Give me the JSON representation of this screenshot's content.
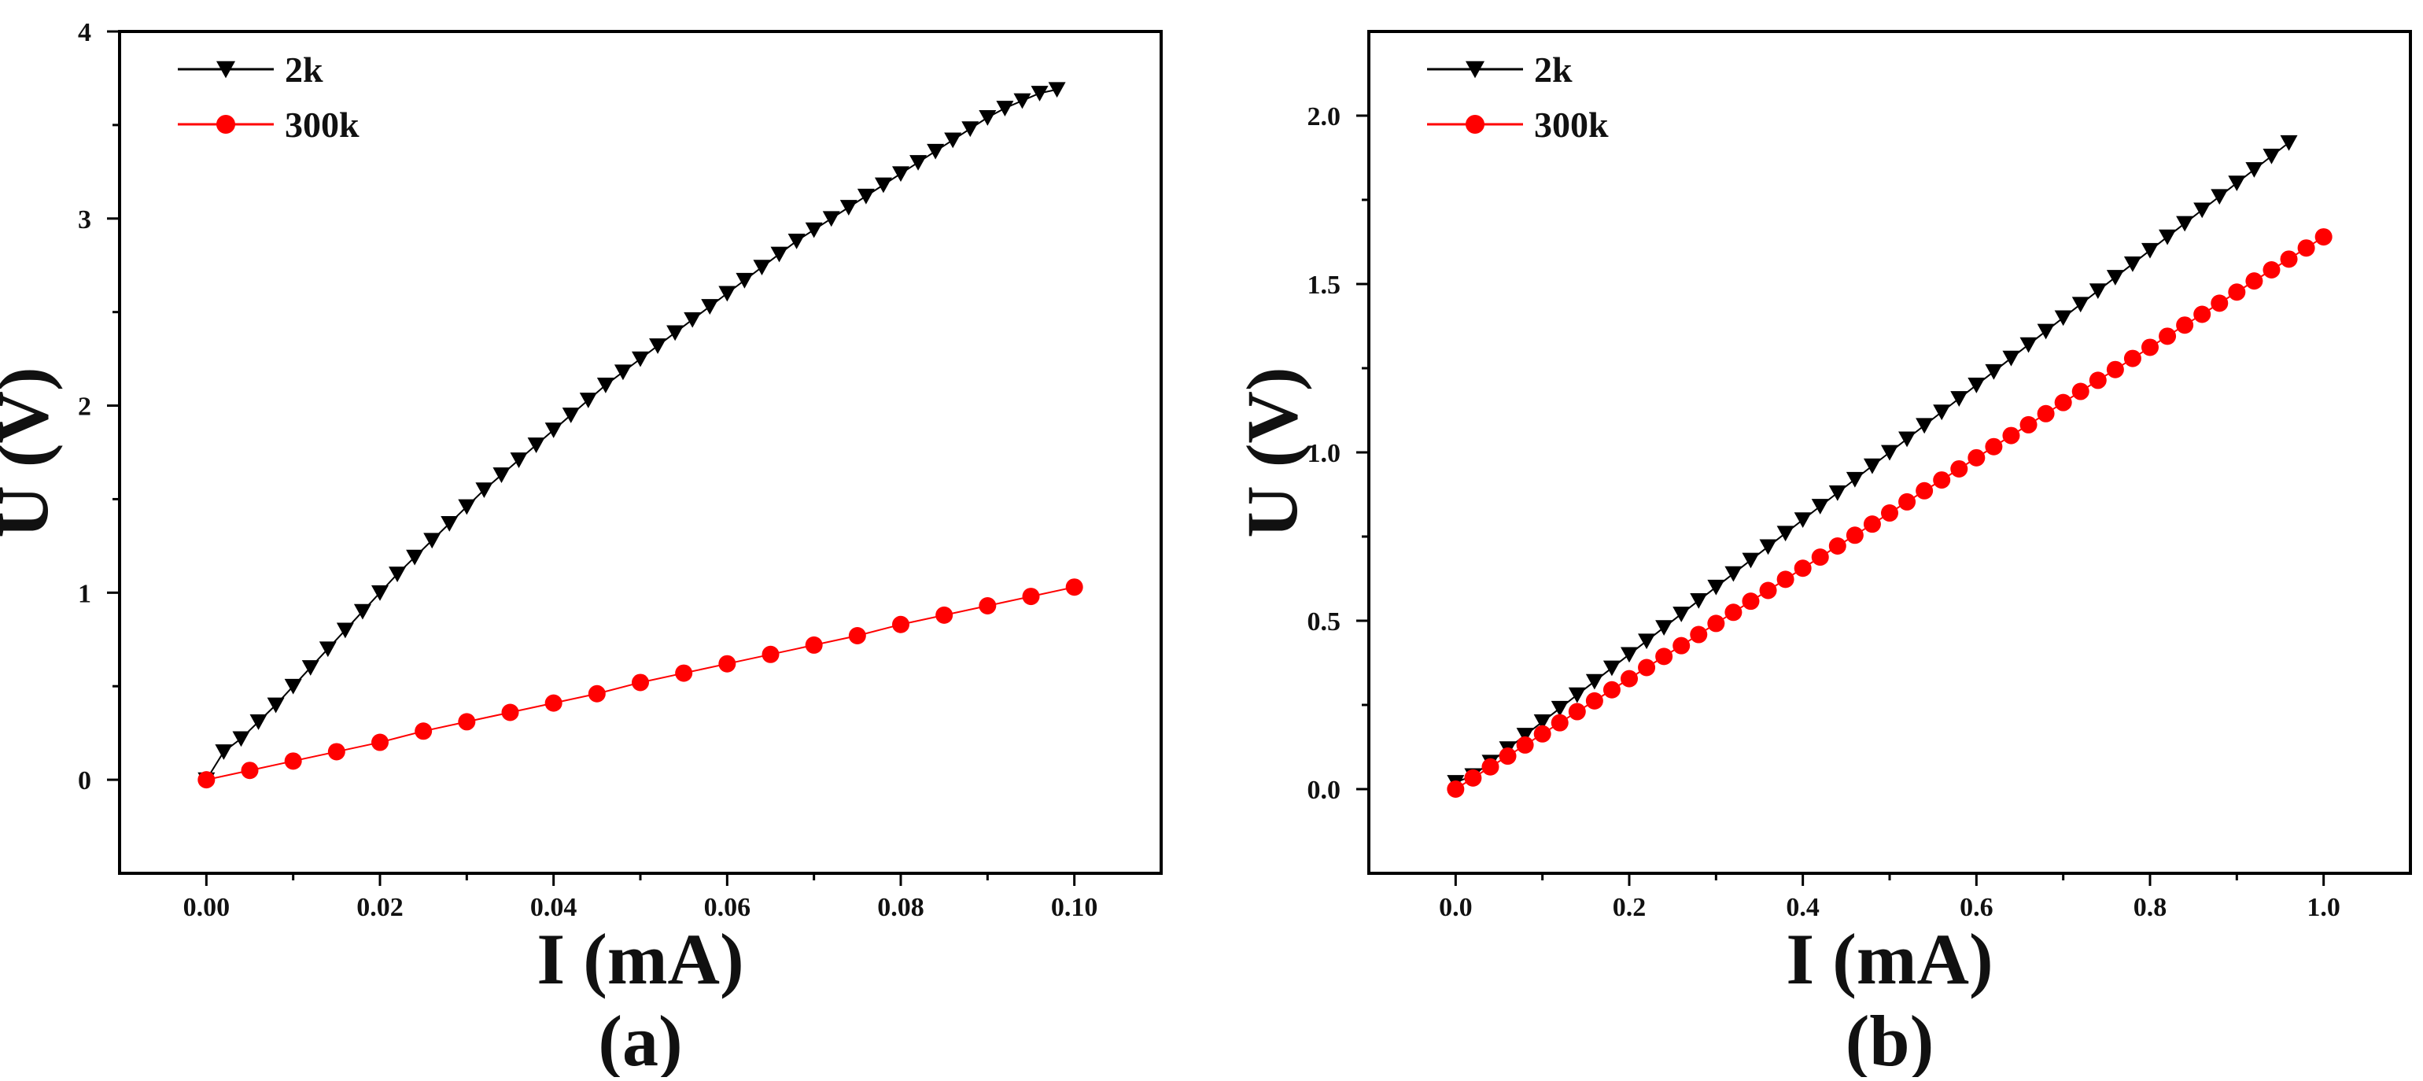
{
  "figure": {
    "panels": [
      "(a)",
      "(b)"
    ]
  },
  "chart_data": [
    {
      "type": "line",
      "title": "",
      "panel_label": "(a)",
      "xlabel": "I (mA)",
      "ylabel": "U (V)",
      "xlim": [
        -0.01,
        0.11
      ],
      "ylim": [
        -0.5,
        4.0
      ],
      "xticks": [
        "0.00",
        "0.02",
        "0.04",
        "0.06",
        "0.08",
        "0.10"
      ],
      "xtick_values": [
        0,
        0.02,
        0.04,
        0.06,
        0.08,
        0.1
      ],
      "yticks": [
        "0",
        "1",
        "2",
        "3",
        "4"
      ],
      "ytick_values": [
        0,
        1,
        2,
        3,
        4
      ],
      "grid": false,
      "legend_position": "top-left",
      "series": [
        {
          "name": "2k",
          "color": "#000000",
          "marker": "triangle-down",
          "x": [
            0,
            0.002,
            0.004,
            0.006,
            0.008,
            0.01,
            0.012,
            0.014,
            0.016,
            0.018,
            0.02,
            0.022,
            0.024,
            0.026,
            0.028,
            0.03,
            0.032,
            0.034,
            0.036,
            0.038,
            0.04,
            0.042,
            0.044,
            0.046,
            0.048,
            0.05,
            0.052,
            0.054,
            0.056,
            0.058,
            0.06,
            0.062,
            0.064,
            0.066,
            0.068,
            0.07,
            0.072,
            0.074,
            0.076,
            0.078,
            0.08,
            0.082,
            0.084,
            0.086,
            0.088,
            0.09,
            0.092,
            0.094,
            0.096,
            0.098
          ],
          "y": [
            0,
            0.15,
            0.22,
            0.31,
            0.4,
            0.5,
            0.6,
            0.7,
            0.8,
            0.9,
            1.0,
            1.1,
            1.19,
            1.28,
            1.37,
            1.46,
            1.55,
            1.63,
            1.71,
            1.79,
            1.87,
            1.95,
            2.03,
            2.11,
            2.18,
            2.25,
            2.32,
            2.39,
            2.46,
            2.53,
            2.6,
            2.67,
            2.74,
            2.81,
            2.88,
            2.94,
            3.0,
            3.06,
            3.12,
            3.18,
            3.24,
            3.3,
            3.36,
            3.42,
            3.48,
            3.54,
            3.59,
            3.63,
            3.67,
            3.69
          ]
        },
        {
          "name": "300k",
          "color": "#ff0000",
          "marker": "circle",
          "x": [
            0,
            0.005,
            0.01,
            0.015,
            0.02,
            0.025,
            0.03,
            0.035,
            0.04,
            0.045,
            0.05,
            0.055,
            0.06,
            0.065,
            0.07,
            0.075,
            0.08,
            0.085,
            0.09,
            0.095,
            0.1
          ],
          "y": [
            0,
            0.05,
            0.1,
            0.15,
            0.2,
            0.26,
            0.31,
            0.36,
            0.41,
            0.46,
            0.52,
            0.57,
            0.62,
            0.67,
            0.72,
            0.77,
            0.83,
            0.88,
            0.93,
            0.98,
            1.03
          ]
        }
      ]
    },
    {
      "type": "line",
      "title": "",
      "panel_label": "(b)",
      "xlabel": "I (mA)",
      "ylabel": "U (V)",
      "xlim": [
        -0.1,
        1.1
      ],
      "ylim": [
        -0.25,
        2.25
      ],
      "xticks": [
        "0.0",
        "0.2",
        "0.4",
        "0.6",
        "0.8",
        "1.0"
      ],
      "xtick_values": [
        0,
        0.2,
        0.4,
        0.6,
        0.8,
        1.0
      ],
      "yticks": [
        "0.0",
        "0.5",
        "1.0",
        "1.5",
        "2.0"
      ],
      "ytick_values": [
        0,
        0.5,
        1.0,
        1.5,
        2.0
      ],
      "grid": false,
      "legend_position": "top-left",
      "series": [
        {
          "name": "2k",
          "color": "#000000",
          "marker": "triangle-down",
          "x": [
            0,
            0.02,
            0.04,
            0.06,
            0.08,
            0.1,
            0.12,
            0.14,
            0.16,
            0.18,
            0.2,
            0.22,
            0.24,
            0.26,
            0.28,
            0.3,
            0.32,
            0.34,
            0.36,
            0.38,
            0.4,
            0.42,
            0.44,
            0.46,
            0.48,
            0.5,
            0.52,
            0.54,
            0.56,
            0.58,
            0.6,
            0.62,
            0.64,
            0.66,
            0.68,
            0.7,
            0.72,
            0.74,
            0.76,
            0.78,
            0.8,
            0.82,
            0.84,
            0.86,
            0.88,
            0.9,
            0.92,
            0.94,
            0.96
          ],
          "y": [
            0.02,
            0.04,
            0.08,
            0.12,
            0.16,
            0.2,
            0.24,
            0.28,
            0.32,
            0.36,
            0.4,
            0.44,
            0.48,
            0.52,
            0.56,
            0.6,
            0.64,
            0.68,
            0.72,
            0.76,
            0.8,
            0.84,
            0.88,
            0.92,
            0.96,
            1.0,
            1.04,
            1.08,
            1.12,
            1.16,
            1.2,
            1.24,
            1.28,
            1.32,
            1.36,
            1.4,
            1.44,
            1.48,
            1.52,
            1.56,
            1.6,
            1.64,
            1.68,
            1.72,
            1.76,
            1.8,
            1.84,
            1.88,
            1.92
          ]
        },
        {
          "name": "300k",
          "color": "#ff0000",
          "marker": "circle",
          "x": [
            0,
            0.02,
            0.04,
            0.06,
            0.08,
            0.1,
            0.12,
            0.14,
            0.16,
            0.18,
            0.2,
            0.22,
            0.24,
            0.26,
            0.28,
            0.3,
            0.32,
            0.34,
            0.36,
            0.38,
            0.4,
            0.42,
            0.44,
            0.46,
            0.48,
            0.5,
            0.52,
            0.54,
            0.56,
            0.58,
            0.6,
            0.62,
            0.64,
            0.66,
            0.68,
            0.7,
            0.72,
            0.74,
            0.76,
            0.78,
            0.8,
            0.82,
            0.84,
            0.86,
            0.88,
            0.9,
            0.92,
            0.94,
            0.96,
            0.98,
            1.0
          ],
          "y": [
            0,
            0.033,
            0.066,
            0.098,
            0.131,
            0.164,
            0.197,
            0.23,
            0.262,
            0.295,
            0.328,
            0.361,
            0.394,
            0.426,
            0.459,
            0.492,
            0.525,
            0.558,
            0.59,
            0.623,
            0.656,
            0.689,
            0.722,
            0.754,
            0.787,
            0.82,
            0.853,
            0.886,
            0.918,
            0.951,
            0.984,
            1.017,
            1.05,
            1.082,
            1.115,
            1.148,
            1.181,
            1.214,
            1.246,
            1.279,
            1.312,
            1.345,
            1.378,
            1.41,
            1.443,
            1.476,
            1.509,
            1.542,
            1.574,
            1.607,
            1.64
          ]
        }
      ]
    }
  ]
}
